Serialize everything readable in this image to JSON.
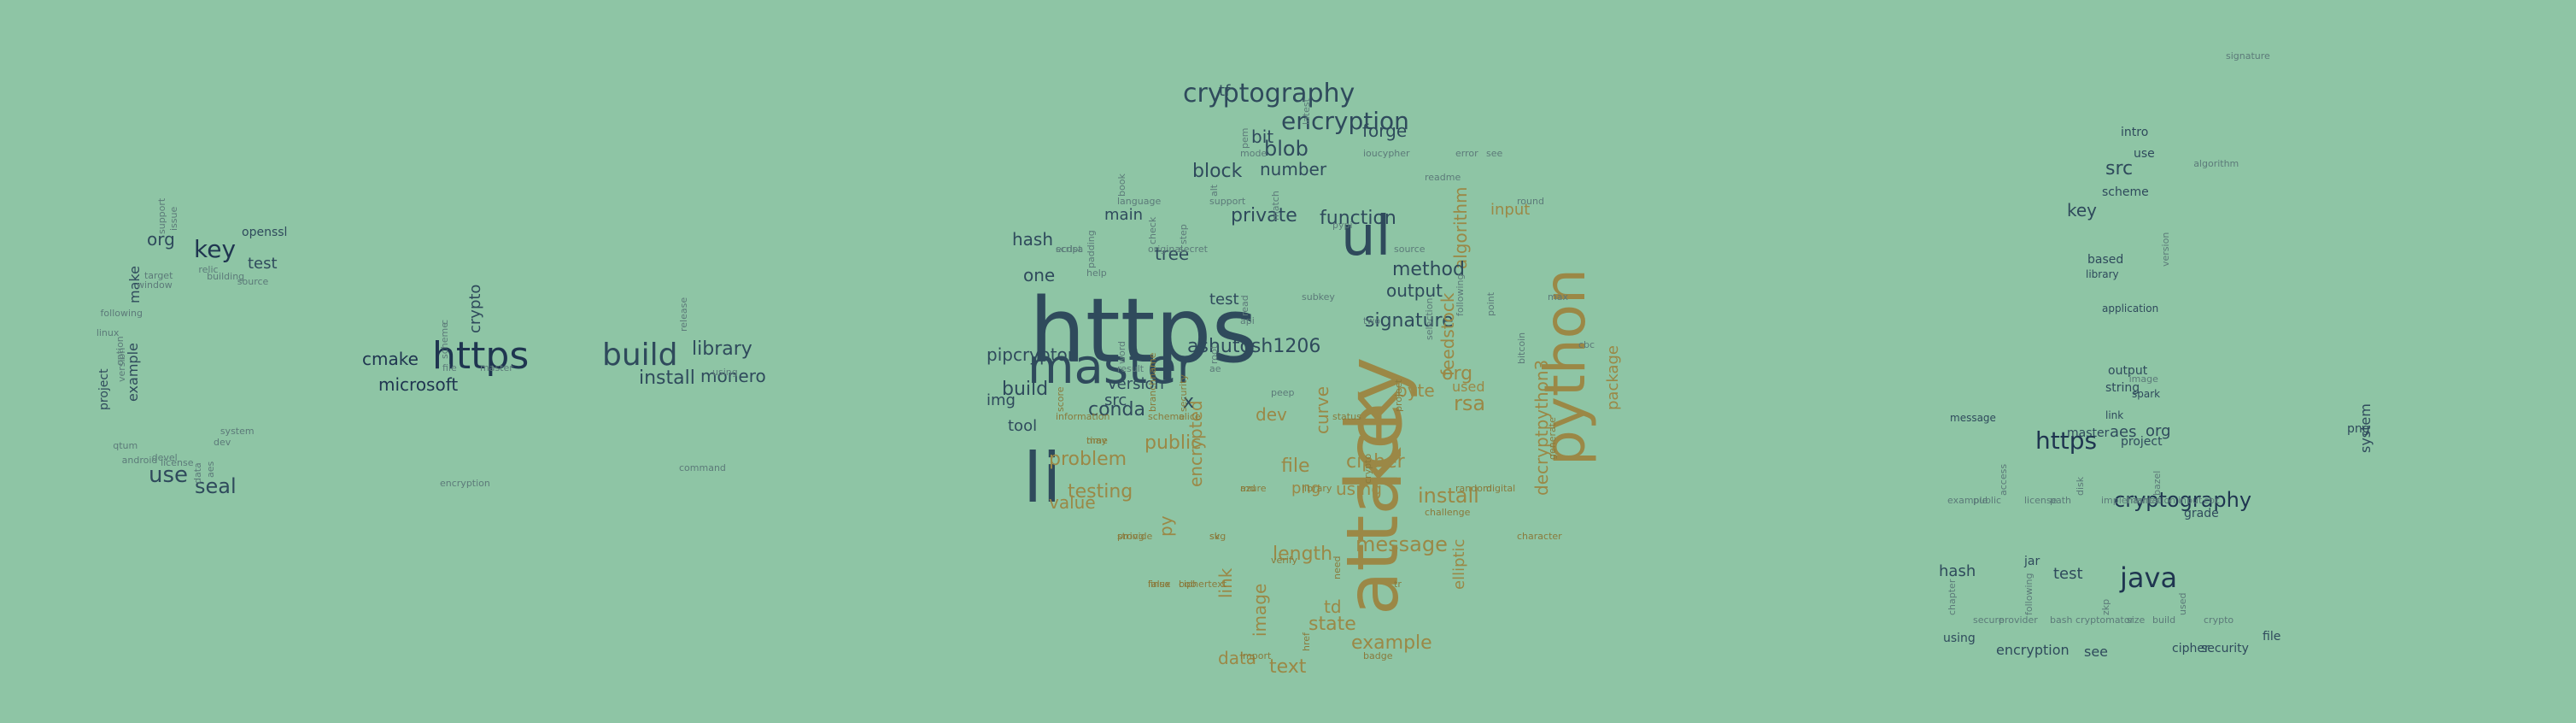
{
  "colors": {
    "background": "#8ec5a5",
    "dark": "#2f4a5c",
    "navy": "#1f3550",
    "slate": "#3e5866",
    "muted": "#5c7a79",
    "gold": "#9b8846",
    "gold_dark": "#8a7a3c"
  },
  "clouds": [
    {
      "name": "cpp-cloud",
      "words": [
        {
          "text": "https",
          "weight": 5
        },
        {
          "text": "build",
          "weight": 4
        },
        {
          "text": "key",
          "weight": 4
        },
        {
          "text": "use",
          "weight": 4
        },
        {
          "text": "library",
          "weight": 3
        },
        {
          "text": "install",
          "weight": 3
        },
        {
          "text": "seal",
          "weight": 3
        },
        {
          "text": "org",
          "weight": 3
        },
        {
          "text": "cmake",
          "weight": 3
        },
        {
          "text": "microsoft",
          "weight": 3
        },
        {
          "text": "monero",
          "weight": 3
        },
        {
          "text": "crypto",
          "weight": 2
        },
        {
          "text": "example",
          "weight": 2
        },
        {
          "text": "project",
          "weight": 2
        },
        {
          "text": "make",
          "weight": 2
        },
        {
          "text": "test",
          "weight": 2
        },
        {
          "text": "openssl",
          "weight": 2
        },
        {
          "text": "source",
          "weight": 1
        },
        {
          "text": "relic",
          "weight": 1
        },
        {
          "text": "support",
          "weight": 1
        },
        {
          "text": "window",
          "weight": 1
        },
        {
          "text": "linux",
          "weight": 1
        },
        {
          "text": "version",
          "weight": 1
        },
        {
          "text": "android",
          "weight": 1
        },
        {
          "text": "license",
          "weight": 1
        },
        {
          "text": "aes",
          "weight": 1
        },
        {
          "text": "system",
          "weight": 1
        },
        {
          "text": "master",
          "weight": 1
        },
        {
          "text": "scheme",
          "weight": 1
        },
        {
          "text": "encryption",
          "weight": 1
        },
        {
          "text": "using",
          "weight": 1
        },
        {
          "text": "release",
          "weight": 1
        },
        {
          "text": "command",
          "weight": 1
        },
        {
          "text": "building",
          "weight": 1
        },
        {
          "text": "issue",
          "weight": 1
        },
        {
          "text": "target",
          "weight": 1
        },
        {
          "text": "following",
          "weight": 1
        },
        {
          "text": "option",
          "weight": 1
        },
        {
          "text": "qtum",
          "weight": 1
        },
        {
          "text": "devel",
          "weight": 1
        },
        {
          "text": "data",
          "weight": 1
        },
        {
          "text": "dev",
          "weight": 1
        },
        {
          "text": "file",
          "weight": 1
        },
        {
          "text": "c",
          "weight": 1
        }
      ]
    },
    {
      "name": "python-cloud",
      "words": [
        {
          "text": "https",
          "weight": 10
        },
        {
          "text": "key",
          "weight": 9
        },
        {
          "text": "attack",
          "weight": 8
        },
        {
          "text": "python",
          "weight": 8
        },
        {
          "text": "master",
          "weight": 7
        },
        {
          "text": "li",
          "weight": 7
        },
        {
          "text": "ul",
          "weight": 6
        },
        {
          "text": "cryptography",
          "weight": 4
        },
        {
          "text": "encryption",
          "weight": 4
        },
        {
          "text": "ashutosh1206",
          "weight": 3
        },
        {
          "text": "pipcrypton",
          "weight": 3
        },
        {
          "text": "build",
          "weight": 3
        },
        {
          "text": "blob",
          "weight": 3
        },
        {
          "text": "signature",
          "weight": 3
        },
        {
          "text": "function",
          "weight": 3
        },
        {
          "text": "message",
          "weight": 3
        },
        {
          "text": "install",
          "weight": 3
        },
        {
          "text": "algorithm",
          "weight": 3
        },
        {
          "text": "feedstock",
          "weight": 3
        },
        {
          "text": "decryptpython3",
          "weight": 3
        },
        {
          "text": "package",
          "weight": 3
        },
        {
          "text": "private",
          "weight": 3
        },
        {
          "text": "method",
          "weight": 3
        },
        {
          "text": "output",
          "weight": 3
        },
        {
          "text": "number",
          "weight": 3
        },
        {
          "text": "block",
          "weight": 3
        },
        {
          "text": "forge",
          "weight": 3
        },
        {
          "text": "testing",
          "weight": 3
        },
        {
          "text": "problem",
          "weight": 3
        },
        {
          "text": "value",
          "weight": 3
        },
        {
          "text": "public",
          "weight": 3
        },
        {
          "text": "encrypted",
          "weight": 3
        },
        {
          "text": "length",
          "weight": 3
        },
        {
          "text": "cipher",
          "weight": 3
        },
        {
          "text": "using",
          "weight": 3
        },
        {
          "text": "file",
          "weight": 3
        },
        {
          "text": "image",
          "weight": 3
        },
        {
          "text": "state",
          "weight": 3
        },
        {
          "text": "example",
          "weight": 3
        },
        {
          "text": "elliptic",
          "weight": 3
        },
        {
          "text": "rsa",
          "weight": 3
        },
        {
          "text": "org",
          "weight": 3
        },
        {
          "text": "used",
          "weight": 3
        },
        {
          "text": "byte",
          "weight": 3
        },
        {
          "text": "input",
          "weight": 2
        },
        {
          "text": "one",
          "weight": 2
        },
        {
          "text": "conda",
          "weight": 2
        },
        {
          "text": "tree",
          "weight": 2
        },
        {
          "text": "main",
          "weight": 2
        },
        {
          "text": "hash",
          "weight": 2
        },
        {
          "text": "img",
          "weight": 2
        },
        {
          "text": "tool",
          "weight": 2
        },
        {
          "text": "version",
          "weight": 2
        },
        {
          "text": "curve",
          "weight": 2
        },
        {
          "text": "td",
          "weight": 2
        },
        {
          "text": "text",
          "weight": 2
        },
        {
          "text": "data",
          "weight": 2
        },
        {
          "text": "link",
          "weight": 2
        },
        {
          "text": "py",
          "weight": 2
        },
        {
          "text": "png",
          "weight": 2
        },
        {
          "text": "dev",
          "weight": 2
        },
        {
          "text": "src",
          "weight": 2
        },
        {
          "text": "bit",
          "weight": 2
        },
        {
          "text": "tf",
          "weight": 2
        },
        {
          "text": "test",
          "weight": 2
        },
        {
          "text": "x",
          "weight": 2
        },
        {
          "text": "ecdsa",
          "weight": 1
        },
        {
          "text": "information",
          "weight": 1
        },
        {
          "text": "padding",
          "weight": 1
        },
        {
          "text": "time",
          "weight": 1
        },
        {
          "text": "language",
          "weight": 1
        },
        {
          "text": "word",
          "weight": 1
        },
        {
          "text": "string",
          "weight": 1
        },
        {
          "text": "original",
          "weight": 1
        },
        {
          "text": "branchname",
          "weight": 1
        },
        {
          "text": "linux",
          "weight": 1
        },
        {
          "text": "secret",
          "weight": 1
        },
        {
          "text": "security",
          "weight": 1
        },
        {
          "text": "ciphertext",
          "weight": 1
        },
        {
          "text": "support",
          "weight": 1
        },
        {
          "text": "root",
          "weight": 1
        },
        {
          "text": "svg",
          "weight": 1
        },
        {
          "text": "mode",
          "weight": 1
        },
        {
          "text": "read",
          "weight": 1
        },
        {
          "text": "azure",
          "weight": 1
        },
        {
          "text": "import",
          "weight": 1
        },
        {
          "text": "match",
          "weight": 1
        },
        {
          "text": "peep",
          "weight": 1
        },
        {
          "text": "verify",
          "weight": 1
        },
        {
          "text": "latest",
          "weight": 1
        },
        {
          "text": "subkey",
          "weight": 1
        },
        {
          "text": "library",
          "weight": 1
        },
        {
          "text": "href",
          "weight": 1
        },
        {
          "text": "pypi",
          "weight": 1
        },
        {
          "text": "status",
          "weight": 1
        },
        {
          "text": "need",
          "weight": 1
        },
        {
          "text": "ioucypher",
          "weight": 1
        },
        {
          "text": "two",
          "weight": 1
        },
        {
          "text": "crypto",
          "weight": 1
        },
        {
          "text": "badge",
          "weight": 1
        },
        {
          "text": "source",
          "weight": 1
        },
        {
          "text": "project",
          "weight": 1
        },
        {
          "text": "tr",
          "weight": 1
        },
        {
          "text": "readme",
          "weight": 1
        },
        {
          "text": "selection",
          "weight": 1
        },
        {
          "text": "challenge",
          "weight": 1
        },
        {
          "text": "error",
          "weight": 1
        },
        {
          "text": "following",
          "weight": 1
        },
        {
          "text": "random",
          "weight": 1
        },
        {
          "text": "see",
          "weight": 1
        },
        {
          "text": "point",
          "weight": 1
        },
        {
          "text": "digital",
          "weight": 1
        },
        {
          "text": "round",
          "weight": 1
        },
        {
          "text": "bitcoin",
          "weight": 1
        },
        {
          "text": "character",
          "weight": 1
        },
        {
          "text": "max",
          "weight": 1
        },
        {
          "text": "generate",
          "weight": 1
        },
        {
          "text": "cbc",
          "weight": 1
        },
        {
          "text": "script",
          "weight": 1
        },
        {
          "text": "score",
          "weight": 1
        },
        {
          "text": "help",
          "weight": 1
        },
        {
          "text": "may",
          "weight": 1
        },
        {
          "text": "book",
          "weight": 1
        },
        {
          "text": "result",
          "weight": 1
        },
        {
          "text": "provide",
          "weight": 1
        },
        {
          "text": "check",
          "weight": 1
        },
        {
          "text": "scheme",
          "weight": 1
        },
        {
          "text": "false",
          "weight": 1
        },
        {
          "text": "step",
          "weight": 1
        },
        {
          "text": "alice",
          "weight": 1
        },
        {
          "text": "bob",
          "weight": 1
        },
        {
          "text": "alt",
          "weight": 1
        },
        {
          "text": "ae",
          "weight": 1
        },
        {
          "text": "sk",
          "weight": 1
        },
        {
          "text": "pem",
          "weight": 1
        },
        {
          "text": "api",
          "weight": 1
        },
        {
          "text": "md",
          "weight": 1
        }
      ]
    },
    {
      "name": "java-cloud",
      "words": [
        {
          "text": "cryptography",
          "weight": 4
        },
        {
          "text": "https",
          "weight": 4
        },
        {
          "text": "java",
          "weight": 4
        },
        {
          "text": "key",
          "weight": 3
        },
        {
          "text": "src",
          "weight": 3
        },
        {
          "text": "test",
          "weight": 2
        },
        {
          "text": "hash",
          "weight": 2
        },
        {
          "text": "org",
          "weight": 2
        },
        {
          "text": "aes",
          "weight": 2
        },
        {
          "text": "project",
          "weight": 2
        },
        {
          "text": "encryption",
          "weight": 2
        },
        {
          "text": "see",
          "weight": 2
        },
        {
          "text": "cipher",
          "weight": 2
        },
        {
          "text": "security",
          "weight": 2
        },
        {
          "text": "file",
          "weight": 2
        },
        {
          "text": "grade",
          "weight": 2
        },
        {
          "text": "master",
          "weight": 2
        },
        {
          "text": "string",
          "weight": 1
        },
        {
          "text": "output",
          "weight": 1
        },
        {
          "text": "scheme",
          "weight": 1
        },
        {
          "text": "intro",
          "weight": 1
        },
        {
          "text": "use",
          "weight": 1
        },
        {
          "text": "based",
          "weight": 1
        },
        {
          "text": "library",
          "weight": 1
        },
        {
          "text": "application",
          "weight": 1
        },
        {
          "text": "system",
          "weight": 1
        },
        {
          "text": "using",
          "weight": 1
        },
        {
          "text": "jar",
          "weight": 1
        },
        {
          "text": "png",
          "weight": 1
        },
        {
          "text": "link",
          "weight": 1
        },
        {
          "text": "spark",
          "weight": 1
        },
        {
          "text": "message",
          "weight": 1
        },
        {
          "text": "signature",
          "weight": 1
        },
        {
          "text": "algorithm",
          "weight": 1
        },
        {
          "text": "version",
          "weight": 1
        },
        {
          "text": "image",
          "weight": 1
        },
        {
          "text": "example",
          "weight": 1
        },
        {
          "text": "chapter",
          "weight": 1
        },
        {
          "text": "public",
          "weight": 1
        },
        {
          "text": "secure",
          "weight": 1
        },
        {
          "text": "access",
          "weight": 1
        },
        {
          "text": "provider",
          "weight": 1
        },
        {
          "text": "license",
          "weight": 1
        },
        {
          "text": "following",
          "weight": 1
        },
        {
          "text": "path",
          "weight": 1
        },
        {
          "text": "bash",
          "weight": 1
        },
        {
          "text": "disk",
          "weight": 1
        },
        {
          "text": "cryptomator",
          "weight": 1
        },
        {
          "text": "implementation",
          "weight": 1
        },
        {
          "text": "zkp",
          "weight": 1
        },
        {
          "text": "hashes",
          "weight": 1
        },
        {
          "text": "size",
          "weight": 1
        },
        {
          "text": "bazel",
          "weight": 1
        },
        {
          "text": "build",
          "weight": 1
        },
        {
          "text": "input",
          "weight": 1
        },
        {
          "text": "used",
          "weight": 1
        },
        {
          "text": "cbc",
          "weight": 1
        },
        {
          "text": "crypto",
          "weight": 1
        }
      ]
    }
  ]
}
